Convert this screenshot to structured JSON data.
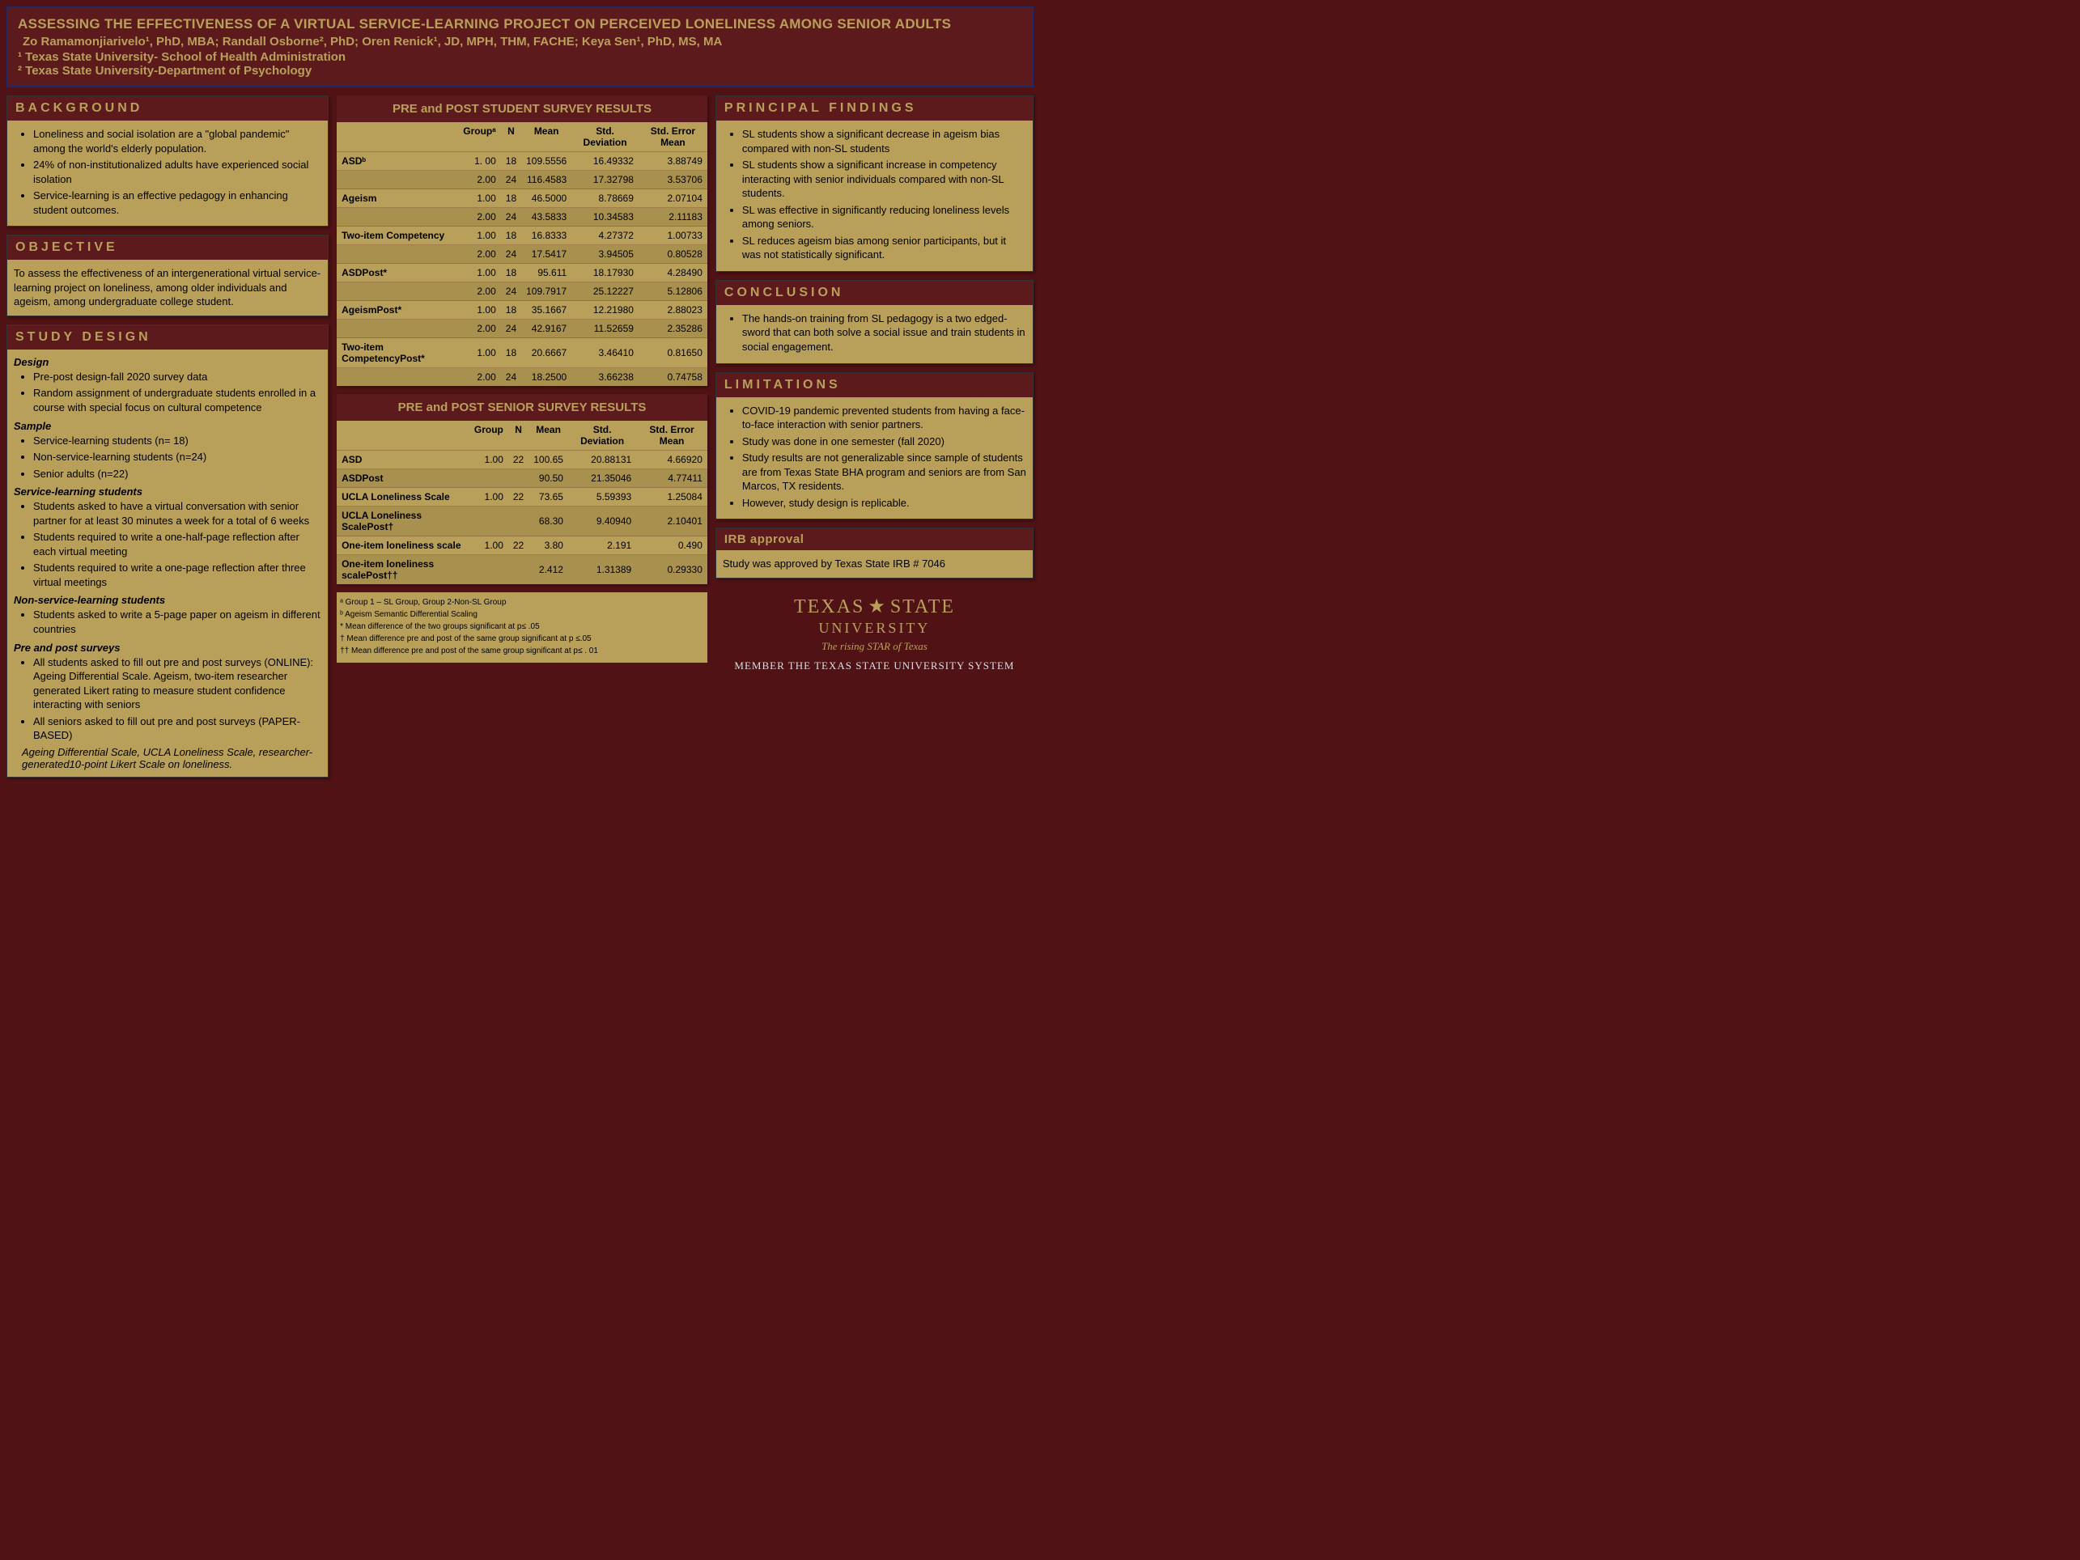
{
  "header": {
    "title": "ASSESSING THE EFFECTIVENESS OF A VIRTUAL SERVICE-LEARNING PROJECT ON PERCEIVED LONELINESS AMONG SENIOR ADULTS",
    "authors": "Zo Ramamonjiarivelo¹, PhD, MBA; Randall Osborne², PhD; Oren Renick¹, JD, MPH, THM, FACHE; Keya Sen¹, PhD, MS, MA",
    "affil1": "¹ Texas State University- School of Health Administration",
    "affil2": "² Texas State University-Department of Psychology"
  },
  "background": {
    "heading": "BACKGROUND",
    "items": [
      "Loneliness and social isolation are a \"global pandemic\" among the world's elderly population.",
      "24% of non-institutionalized adults have experienced social isolation",
      "Service-learning is an effective pedagogy in enhancing student outcomes."
    ]
  },
  "objective": {
    "heading": "OBJECTIVE",
    "text": "To assess the effectiveness of an intergenerational virtual service-learning project on loneliness, among older individuals and ageism, among undergraduate college student."
  },
  "design": {
    "heading": "STUDY DESIGN",
    "sections": [
      {
        "title": "Design",
        "items": [
          "Pre-post design-fall 2020 survey data",
          "Random assignment of undergraduate students enrolled in a course with special focus on cultural competence"
        ]
      },
      {
        "title": "Sample",
        "items": [
          "Service-learning students (n= 18)",
          "Non-service-learning students (n=24)",
          "Senior adults (n=22)"
        ]
      },
      {
        "title": "Service-learning students",
        "items": [
          "Students asked to have a virtual conversation with senior partner for at least 30 minutes a week for a total of 6 weeks",
          "Students required to write a one-half-page reflection after each virtual meeting",
          "Students required to write a one-page reflection after three virtual meetings"
        ]
      },
      {
        "title": "Non-service-learning students",
        "items": [
          "Students asked to write a 5-page paper on ageism in different countries"
        ]
      },
      {
        "title": "Pre and post surveys",
        "items": [
          "All students asked to fill out pre and post surveys (ONLINE): Ageing Differential Scale. Ageism, two-item researcher generated Likert rating to measure student confidence interacting with seniors",
          "All seniors asked to fill out pre and post surveys (PAPER-BASED)"
        ],
        "tail": "Ageing Differential Scale, UCLA Loneliness Scale, researcher-generated10-point Likert Scale on loneliness."
      }
    ]
  },
  "table1": {
    "title": "PRE and POST STUDENT SURVEY RESULTS",
    "cols": [
      "",
      "Groupᵃ",
      "N",
      "Mean",
      "Std. Deviation",
      "Std. Error Mean"
    ],
    "rows": [
      [
        "ASDᵇ",
        "1. 00",
        "18",
        "109.5556",
        "16.49332",
        "3.88749"
      ],
      [
        "",
        "2.00",
        "24",
        "116.4583",
        "17.32798",
        "3.53706"
      ],
      [
        "Ageism",
        "1.00",
        "18",
        "46.5000",
        "8.78669",
        "2.07104"
      ],
      [
        "",
        "2.00",
        "24",
        "43.5833",
        "10.34583",
        "2.11183"
      ],
      [
        "Two-item Competency",
        "1.00",
        "18",
        "16.8333",
        "4.27372",
        "1.00733"
      ],
      [
        "",
        "2.00",
        "24",
        "17.5417",
        "3.94505",
        "0.80528"
      ],
      [
        "ASDPost*",
        "1.00",
        "18",
        "95.611",
        "18.17930",
        "4.28490"
      ],
      [
        "",
        "2.00",
        "24",
        "109.7917",
        "25.12227",
        "5.12806"
      ],
      [
        "AgeismPost*",
        "1.00",
        "18",
        "35.1667",
        "12.21980",
        "2.88023"
      ],
      [
        "",
        "2.00",
        "24",
        "42.9167",
        "11.52659",
        "2.35286"
      ],
      [
        "Two-item CompetencyPost*",
        "1.00",
        "18",
        "20.6667",
        "3.46410",
        "0.81650"
      ],
      [
        "",
        "2.00",
        "24",
        "18.2500",
        "3.66238",
        "0.74758"
      ]
    ]
  },
  "table2": {
    "title": "PRE and POST SENIOR SURVEY RESULTS",
    "cols": [
      "",
      "Group",
      "N",
      "Mean",
      "Std. Deviation",
      "Std. Error Mean"
    ],
    "rows": [
      [
        "ASD",
        "1.00",
        "22",
        "100.65",
        "20.88131",
        "4.66920"
      ],
      [
        "ASDPost",
        "",
        "",
        "90.50",
        "21.35046",
        "4.77411"
      ],
      [
        "UCLA Loneliness Scale",
        "1.00",
        "22",
        "73.65",
        "5.59393",
        "1.25084"
      ],
      [
        "UCLA Loneliness ScalePost†",
        "",
        "",
        "68.30",
        "9.40940",
        "2.10401"
      ],
      [
        "One-item loneliness scale",
        "1.00",
        "22",
        "3.80",
        "2.191",
        "0.490"
      ],
      [
        "One-item loneliness scalePost††",
        "",
        "",
        "2.412",
        "1.31389",
        "0.29330"
      ]
    ]
  },
  "footnotes": [
    "ᵃ Group 1 – SL Group, Group 2-Non-SL Group",
    "ᵇ Ageism Semantic Differential Scaling",
    "* Mean difference of the two groups significant at p≤ .05",
    "† Mean difference pre and post of the same group significant at p ≤.05",
    "†† Mean difference pre and post of the same group significant at p≤ . 01"
  ],
  "findings": {
    "heading": "PRINCIPAL FINDINGS",
    "items": [
      "SL students show a significant decrease in ageism bias compared with non-SL students",
      "SL students show a significant increase in competency interacting with senior individuals compared with non-SL students.",
      "SL was effective in significantly reducing loneliness levels among seniors.",
      "SL reduces ageism bias among senior participants, but it was not statistically significant."
    ]
  },
  "conclusion": {
    "heading": "CONCLUSION",
    "items": [
      "The hands-on training from SL pedagogy is a two edged-sword that can both solve a social issue and train students in social engagement."
    ]
  },
  "limitations": {
    "heading": "LIMITATIONS",
    "items": [
      "COVID-19 pandemic prevented students from having a face-to-face interaction with senior partners.",
      "Study was done in one semester (fall 2020)",
      "Study results are not generalizable since sample of students are from Texas State BHA program and seniors are from San Marcos, TX residents.",
      "However, study design is replicable."
    ]
  },
  "irb": {
    "heading": "IRB approval",
    "text": "Study was approved by Texas State IRB # 7046"
  },
  "logo": {
    "line1a": "TEXAS",
    "line1b": "STATE",
    "line2": "UNIVERSITY",
    "tag": "The rising STAR of Texas",
    "member": "MEMBER THE TEXAS STATE UNIVERSITY SYSTEM"
  }
}
